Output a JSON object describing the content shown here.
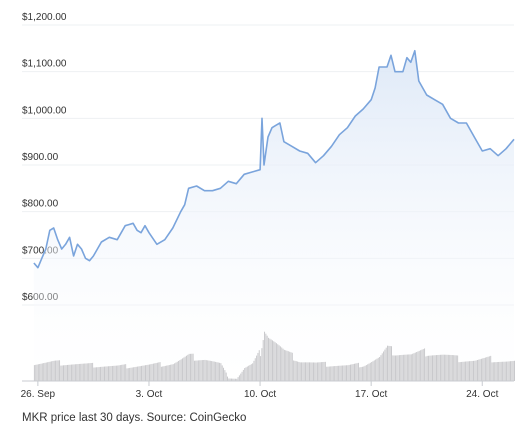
{
  "caption": "MKR price last 30 days. Source: CoinGecko",
  "colors": {
    "line": "#7aa4dc",
    "area_top": "#dde8f7",
    "area_bottom": "#ffffff",
    "volume": "#c9c9cc",
    "volume_edge": "#b5b5ba",
    "grid": "#eef0f3",
    "text": "#333333"
  },
  "chart_data": {
    "type": "line",
    "title": "",
    "xlabel": "",
    "ylabel": "",
    "ylim": [
      600,
      1200
    ],
    "x_range": [
      "2023-09-25",
      "2023-10-26"
    ],
    "y_ticks": [
      {
        "value": 1200,
        "label": "$1,200.00"
      },
      {
        "value": 1100,
        "label": "$1,100.00"
      },
      {
        "value": 1000,
        "label": "$1,000.00"
      },
      {
        "value": 900,
        "label": "$900.00"
      },
      {
        "value": 800,
        "label": "$800.00"
      },
      {
        "value": 700,
        "label": "$700.00"
      },
      {
        "value": 600,
        "label": "$600.00"
      }
    ],
    "x_ticks": [
      {
        "date": "2023-09-26",
        "label": "26. Sep"
      },
      {
        "date": "2023-10-03",
        "label": "3. Oct"
      },
      {
        "date": "2023-10-10",
        "label": "10. Oct"
      },
      {
        "date": "2023-10-17",
        "label": "17. Oct"
      },
      {
        "date": "2023-10-24",
        "label": "24. Oct"
      }
    ],
    "grid": true,
    "price_series": {
      "x": [
        "2023-09-25T18:00",
        "2023-09-26T00:00",
        "2023-09-26T06:00",
        "2023-09-26T12:00",
        "2023-09-26T18:00",
        "2023-09-27T00:00",
        "2023-09-27T06:00",
        "2023-09-27T12:00",
        "2023-09-27T18:00",
        "2023-09-28T00:00",
        "2023-09-28T06:00",
        "2023-09-28T12:00",
        "2023-09-28T18:00",
        "2023-09-29T00:00",
        "2023-09-29T06:00",
        "2023-09-29T12:00",
        "2023-09-29T18:00",
        "2023-09-30T00:00",
        "2023-09-30T12:00",
        "2023-10-01T00:00",
        "2023-10-01T12:00",
        "2023-10-02T00:00",
        "2023-10-02T06:00",
        "2023-10-02T12:00",
        "2023-10-02T18:00",
        "2023-10-03T00:00",
        "2023-10-03T12:00",
        "2023-10-04T00:00",
        "2023-10-04T12:00",
        "2023-10-05T00:00",
        "2023-10-05T06:00",
        "2023-10-05T12:00",
        "2023-10-06T00:00",
        "2023-10-06T12:00",
        "2023-10-07T00:00",
        "2023-10-07T12:00",
        "2023-10-08T00:00",
        "2023-10-08T12:00",
        "2023-10-09T00:00",
        "2023-10-09T12:00",
        "2023-10-10T00:00",
        "2023-10-10T03:00",
        "2023-10-10T06:00",
        "2023-10-10T12:00",
        "2023-10-10T18:00",
        "2023-10-11T00:00",
        "2023-10-11T06:00",
        "2023-10-11T12:00",
        "2023-10-12T00:00",
        "2023-10-12T12:00",
        "2023-10-13T00:00",
        "2023-10-13T12:00",
        "2023-10-14T00:00",
        "2023-10-14T12:00",
        "2023-10-15T00:00",
        "2023-10-15T12:00",
        "2023-10-16T00:00",
        "2023-10-16T12:00",
        "2023-10-17T00:00",
        "2023-10-17T06:00",
        "2023-10-17T12:00",
        "2023-10-18T00:00",
        "2023-10-18T06:00",
        "2023-10-18T12:00",
        "2023-10-19T00:00",
        "2023-10-19T06:00",
        "2023-10-19T12:00",
        "2023-10-19T18:00",
        "2023-10-20T00:00",
        "2023-10-20T12:00",
        "2023-10-21T00:00",
        "2023-10-21T12:00",
        "2023-10-22T00:00",
        "2023-10-22T12:00",
        "2023-10-23T00:00",
        "2023-10-23T12:00",
        "2023-10-24T00:00",
        "2023-10-24T12:00",
        "2023-10-25T00:00",
        "2023-10-25T12:00",
        "2023-10-26T00:00"
      ],
      "y": [
        690,
        680,
        700,
        720,
        760,
        765,
        740,
        720,
        730,
        745,
        705,
        730,
        720,
        700,
        695,
        705,
        720,
        735,
        745,
        740,
        770,
        775,
        760,
        755,
        770,
        755,
        730,
        740,
        765,
        800,
        815,
        850,
        855,
        845,
        845,
        850,
        865,
        860,
        880,
        885,
        890,
        1000,
        900,
        960,
        980,
        985,
        990,
        950,
        940,
        930,
        925,
        905,
        920,
        940,
        965,
        980,
        1005,
        1020,
        1040,
        1065,
        1110,
        1110,
        1135,
        1100,
        1100,
        1130,
        1120,
        1145,
        1080,
        1050,
        1040,
        1030,
        1000,
        990,
        990,
        960,
        930,
        935,
        920,
        935,
        955
      ]
    },
    "volume_series": {
      "name": "Volume",
      "unit": "relative",
      "x": [
        "2023-09-25T18:00",
        "2023-09-27T00:00",
        "2023-09-29T00:00",
        "2023-10-01T00:00",
        "2023-10-03T00:00",
        "2023-10-04T12:00",
        "2023-10-05T12:00",
        "2023-10-06T12:00",
        "2023-10-07T12:00",
        "2023-10-08T00:00",
        "2023-10-08T12:00",
        "2023-10-09T00:00",
        "2023-10-09T12:00",
        "2023-10-10T00:00",
        "2023-10-10T06:00",
        "2023-10-10T12:00",
        "2023-10-11T00:00",
        "2023-10-11T12:00",
        "2023-10-12T12:00",
        "2023-10-13T12:00",
        "2023-10-14T12:00",
        "2023-10-15T12:00",
        "2023-10-16T12:00",
        "2023-10-17T12:00",
        "2023-10-18T00:00",
        "2023-10-18T12:00",
        "2023-10-19T12:00",
        "2023-10-20T12:00",
        "2023-10-21T12:00",
        "2023-10-22T12:00",
        "2023-10-23T12:00",
        "2023-10-24T12:00",
        "2023-10-25T12:00",
        "2023-10-26T00:00"
      ],
      "y": [
        0.3,
        0.32,
        0.28,
        0.25,
        0.27,
        0.3,
        0.42,
        0.38,
        0.28,
        0.05,
        0.04,
        0.22,
        0.28,
        0.5,
        0.95,
        0.8,
        0.65,
        0.5,
        0.35,
        0.3,
        0.28,
        0.26,
        0.28,
        0.4,
        0.55,
        0.5,
        0.45,
        0.5,
        0.45,
        0.38,
        0.35,
        0.38,
        0.34,
        0.33
      ]
    }
  }
}
